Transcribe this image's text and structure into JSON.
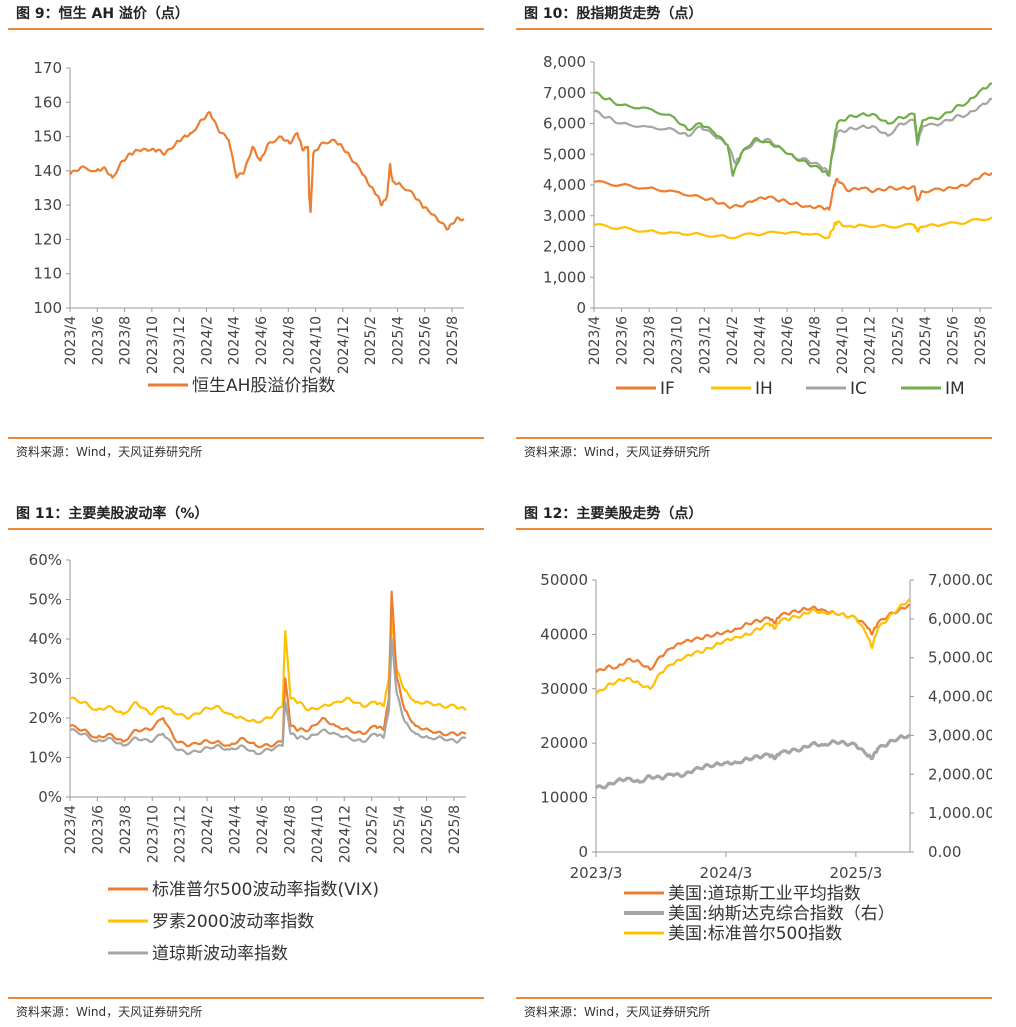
{
  "panels": [
    {
      "title": "图 9：恒生 AH 溢价（点）",
      "source": "资料来源：Wind，天风证券研究所"
    },
    {
      "title": "图 10：股指期货走势（点）",
      "source": "资料来源：Wind，天风证券研究所"
    },
    {
      "title": "图 11：主要美股波动率（%）",
      "source": "资料来源：Wind，天风证券研究所"
    },
    {
      "title": "图 12：主要美股走势（点）",
      "source": "资料来源：Wind，天风证券研究所"
    }
  ],
  "colors": {
    "orange": "#ed7d31",
    "yellow": "#ffc000",
    "gray": "#a5a5a5",
    "green": "#70ad47",
    "rule": "#e8893a"
  },
  "chart_data": [
    {
      "type": "line",
      "title": "恒生AH股溢价指数",
      "ylim": [
        100,
        170
      ],
      "yticks": [
        "100",
        "110",
        "120",
        "130",
        "140",
        "150",
        "160",
        "170"
      ],
      "xticks": [
        "2023/4",
        "2023/6",
        "2023/8",
        "2023/10",
        "2023/12",
        "2024/2",
        "2024/4",
        "2024/6",
        "2024/8",
        "2024/10",
        "2024/12",
        "2025/2",
        "2025/4",
        "2025/6",
        "2025/8"
      ],
      "legend": [
        "恒生AH股溢价指数"
      ],
      "series": [
        {
          "name": "恒生AH股溢价指数",
          "color": "#ed7d31",
          "width": 2.2,
          "x": [
            0,
            0.4,
            1,
            1.3,
            1.6,
            2,
            2.3,
            2.6,
            3,
            3.3,
            3.6,
            4,
            4.3,
            4.6,
            5,
            5.3,
            5.6,
            6,
            6.3,
            6.6,
            6.9,
            7.2,
            7.5,
            8,
            8.3,
            8.6,
            8.8,
            9,
            9.05,
            9.1,
            9.2,
            9.5,
            10,
            10.3,
            10.6,
            11,
            11.3,
            11.6,
            11.8,
            12,
            12.1,
            12.2,
            12.5,
            13,
            13.3,
            13.6,
            14,
            14.3,
            14.6,
            14.9
          ],
          "y": [
            139,
            141,
            140,
            141,
            138,
            143,
            145,
            146,
            146,
            146,
            145,
            148,
            150,
            151,
            155,
            157,
            152,
            149,
            138,
            140,
            147,
            143,
            148,
            150,
            148,
            151,
            146,
            147,
            132,
            128,
            145,
            148,
            149,
            147,
            144,
            140,
            136,
            133,
            130,
            133,
            142,
            137,
            136,
            133,
            130,
            128,
            125,
            123,
            126,
            126
          ]
        }
      ]
    },
    {
      "type": "line",
      "title": "股指期货走势",
      "ylim": [
        0,
        8000
      ],
      "yticks": [
        "0",
        "1,000",
        "2,000",
        "3,000",
        "4,000",
        "5,000",
        "6,000",
        "7,000",
        "8,000"
      ],
      "xticks": [
        "2023/4",
        "2023/6",
        "2023/8",
        "2023/10",
        "2023/12",
        "2024/2",
        "2024/4",
        "2024/6",
        "2024/8",
        "2024/10",
        "2024/12",
        "2025/2",
        "2025/4",
        "2025/6",
        "2025/8"
      ],
      "legend": [
        "IF",
        "IH",
        "IC",
        "IM"
      ],
      "series": [
        {
          "name": "IF",
          "color": "#ed7d31",
          "width": 2.2,
          "x": [
            0,
            1,
            2,
            3,
            4,
            4.5,
            5,
            5.5,
            6,
            6.5,
            7,
            7.5,
            8,
            8.5,
            8.8,
            9,
            9.1,
            9.5,
            10,
            10.5,
            11,
            11.5,
            12,
            12.1,
            12.3,
            13,
            13.5,
            14,
            14.5,
            14.9
          ],
          "x_note": "",
          "y": [
            4100,
            4000,
            3900,
            3800,
            3600,
            3500,
            3300,
            3300,
            3500,
            3600,
            3500,
            3400,
            3300,
            3300,
            3200,
            4000,
            4200,
            3800,
            3900,
            3800,
            3900,
            3900,
            3950,
            3500,
            3800,
            3850,
            3900,
            4000,
            4300,
            4400
          ]
        },
        {
          "name": "IH",
          "color": "#ffc000",
          "width": 2.2,
          "x": [
            0,
            1,
            2,
            3,
            4,
            5,
            6,
            7,
            8,
            8.8,
            9,
            9.1,
            9.5,
            10,
            11,
            12,
            12.1,
            12.3,
            13,
            14,
            14.9
          ],
          "y": [
            2700,
            2600,
            2500,
            2450,
            2400,
            2300,
            2400,
            2450,
            2400,
            2300,
            2700,
            2800,
            2650,
            2700,
            2650,
            2700,
            2500,
            2650,
            2700,
            2800,
            2950
          ]
        },
        {
          "name": "IC",
          "color": "#a5a5a5",
          "width": 2.2,
          "x": [
            0,
            0.5,
            1,
            2,
            3,
            3.5,
            4,
            4.5,
            5,
            5.3,
            5.5,
            6,
            6.5,
            7,
            7.5,
            8,
            8.5,
            8.8,
            9,
            9.1,
            9.5,
            10,
            10.5,
            11,
            11.5,
            12,
            12.1,
            12.3,
            13,
            13.5,
            14,
            14.5,
            14.9
          ],
          "y": [
            6400,
            6200,
            6000,
            5900,
            5800,
            5600,
            5900,
            5600,
            5300,
            4700,
            5000,
            5400,
            5500,
            5200,
            4900,
            4800,
            4600,
            4400,
            5300,
            5700,
            5800,
            5900,
            5900,
            5600,
            6000,
            6100,
            5300,
            5900,
            6000,
            6200,
            6300,
            6600,
            6800
          ]
        },
        {
          "name": "IM",
          "color": "#70ad47",
          "width": 2.2,
          "x": [
            0,
            0.5,
            1,
            2,
            3,
            3.5,
            4,
            4.5,
            5,
            5.2,
            5.5,
            6,
            6.5,
            7,
            7.5,
            8,
            8.5,
            8.8,
            9,
            9.1,
            9.5,
            10,
            10.5,
            11,
            11.5,
            12,
            12.1,
            12.3,
            13,
            13.5,
            14,
            14.5,
            14.9
          ],
          "y": [
            7000,
            6800,
            6600,
            6500,
            6200,
            5800,
            6000,
            5700,
            5300,
            4300,
            5000,
            5500,
            5400,
            5200,
            4900,
            4700,
            4500,
            4300,
            5500,
            6000,
            6200,
            6300,
            6300,
            6000,
            6200,
            6300,
            5400,
            6100,
            6200,
            6500,
            6700,
            7100,
            7300
          ]
        }
      ]
    },
    {
      "type": "line",
      "title": "主要美股波动率",
      "ylim": [
        0,
        60
      ],
      "yticks": [
        "0%",
        "10%",
        "20%",
        "30%",
        "40%",
        "50%",
        "60%"
      ],
      "xticks": [
        "2023/4",
        "2023/6",
        "2023/8",
        "2023/10",
        "2023/12",
        "2024/2",
        "2024/4",
        "2024/6",
        "2024/8",
        "2024/10",
        "2024/12",
        "2025/2",
        "2025/4",
        "2025/6",
        "2025/8"
      ],
      "legend": [
        "标准普尔500波动率指数(VIX)",
        "罗素2000波动率指数",
        "道琼斯波动率指数"
      ],
      "series": [
        {
          "name": "罗素2000波动率指数",
          "color": "#ffc000",
          "width": 2.2,
          "x": [
            0,
            0.5,
            1,
            1.5,
            2,
            2.5,
            3,
            3.5,
            4,
            4.5,
            5,
            5.5,
            6,
            6.5,
            7,
            7.5,
            8,
            8.1,
            8.3,
            8.6,
            9,
            9.5,
            10,
            10.5,
            11,
            11.5,
            11.8,
            12,
            12.1,
            12.3,
            12.6,
            13,
            13.5,
            14,
            14.5,
            14.9
          ],
          "y": [
            25,
            24,
            22,
            23,
            21,
            24,
            21,
            23,
            21,
            20,
            22,
            23,
            21,
            20,
            19,
            20,
            23,
            42,
            25,
            24,
            22,
            23,
            24,
            25,
            23,
            24,
            23,
            30,
            45,
            32,
            27,
            24,
            24,
            23,
            23,
            22
          ]
        },
        {
          "name": "标准普尔500波动率指数(VIX)",
          "color": "#ed7d31",
          "width": 2.2,
          "x": [
            0,
            0.5,
            1,
            1.5,
            2,
            2.5,
            3,
            3.5,
            4,
            4.5,
            5,
            5.5,
            6,
            6.5,
            7,
            7.5,
            8,
            8.1,
            8.3,
            8.6,
            9,
            9.5,
            10,
            10.5,
            11,
            11.5,
            11.8,
            12,
            12.1,
            12.3,
            12.6,
            13,
            13.5,
            14,
            14.5,
            14.9
          ],
          "y": [
            18,
            17,
            15,
            16,
            14,
            17,
            17,
            20,
            14,
            13,
            14,
            14,
            13,
            15,
            13,
            13,
            14,
            30,
            18,
            17,
            17,
            20,
            18,
            17,
            16,
            18,
            17,
            25,
            52,
            30,
            22,
            18,
            17,
            16,
            16,
            16
          ]
        },
        {
          "name": "道琼斯波动率指数",
          "color": "#a5a5a5",
          "width": 2.2,
          "x": [
            0,
            0.5,
            1,
            1.5,
            2,
            2.5,
            3,
            3.5,
            4,
            4.5,
            5,
            5.5,
            6,
            6.5,
            7,
            7.5,
            8,
            8.1,
            8.3,
            8.6,
            9,
            9.5,
            10,
            10.5,
            11,
            11.5,
            11.8,
            12,
            12.1,
            12.3,
            12.6,
            13,
            13.5,
            14,
            14.5,
            14.9
          ],
          "y": [
            17,
            16,
            14,
            15,
            13,
            15,
            14,
            16,
            12,
            11,
            12,
            13,
            12,
            13,
            11,
            12,
            13,
            24,
            16,
            15,
            15,
            17,
            16,
            15,
            14,
            16,
            15,
            22,
            40,
            26,
            19,
            16,
            15,
            15,
            14,
            15
          ]
        }
      ]
    },
    {
      "type": "line",
      "title": "主要美股走势",
      "ylim": [
        0,
        50000
      ],
      "ylim_right": [
        0,
        7000
      ],
      "yticks": [
        "0",
        "10000",
        "20000",
        "30000",
        "40000",
        "50000"
      ],
      "yticks_right": [
        "0.00",
        "1,000.00",
        "2,000.00",
        "3,000.00",
        "4,000.00",
        "5,000.00",
        "6,000.00",
        "7,000.00"
      ],
      "xticks": [
        "2023/3",
        "2024/3",
        "2025/3"
      ],
      "legend": [
        "美国:道琼斯工业平均指数",
        "美国:纳斯达克综合指数（右）",
        "美国:标准普尔500指数"
      ],
      "series": [
        {
          "name": "美国:纳斯达克综合指数（右）",
          "color": "#a5a5a5",
          "width": 3.2,
          "axis": "right",
          "x": [
            0,
            1,
            2,
            3,
            4,
            5,
            6,
            7,
            8,
            9,
            10,
            11,
            12,
            13,
            14,
            15,
            16,
            16.5,
            17,
            18,
            19,
            20,
            21,
            22,
            23,
            24,
            25,
            25.5,
            26,
            27,
            28,
            29
          ],
          "y": [
            1650,
            1700,
            1850,
            1900,
            1800,
            1950,
            1900,
            2000,
            1950,
            2100,
            2200,
            2250,
            2300,
            2300,
            2400,
            2450,
            2500,
            2400,
            2550,
            2600,
            2650,
            2800,
            2750,
            2850,
            2800,
            2750,
            2500,
            2400,
            2650,
            2800,
            2950,
            3000
          ]
        },
        {
          "name": "美国:道琼斯工业平均指数",
          "color": "#ed7d31",
          "width": 2.2,
          "x": [
            0,
            1,
            2,
            3,
            4,
            5,
            6,
            7,
            8,
            9,
            10,
            11,
            12,
            13,
            14,
            15,
            16,
            16.5,
            17,
            18,
            19,
            20,
            21,
            22,
            23,
            24,
            25,
            25.5,
            26,
            27,
            28,
            29
          ],
          "y": [
            33000,
            34000,
            34000,
            35500,
            35000,
            33500,
            36000,
            37500,
            38500,
            39000,
            39500,
            40000,
            40500,
            41000,
            42000,
            42500,
            43000,
            42000,
            43500,
            44000,
            44500,
            45000,
            44500,
            44000,
            43500,
            43000,
            41500,
            40000,
            42000,
            43500,
            44500,
            45500
          ]
        },
        {
          "name": "美国:标准普尔500指数",
          "color": "#ffc000",
          "width": 2.2,
          "x": [
            0,
            1,
            2,
            3,
            4,
            5,
            6,
            7,
            8,
            9,
            10,
            11,
            12,
            13,
            14,
            15,
            16,
            16.5,
            17,
            18,
            19,
            20,
            21,
            22,
            23,
            24,
            25,
            25.5,
            26,
            27,
            28,
            29
          ],
          "y": [
            29000,
            30500,
            31500,
            32000,
            31000,
            30000,
            33000,
            34500,
            35500,
            36500,
            37000,
            38000,
            39000,
            39500,
            40000,
            41000,
            42000,
            41000,
            42500,
            43000,
            43500,
            44500,
            44000,
            44000,
            43500,
            43000,
            40000,
            37500,
            41000,
            43000,
            45000,
            46500
          ]
        }
      ]
    }
  ]
}
